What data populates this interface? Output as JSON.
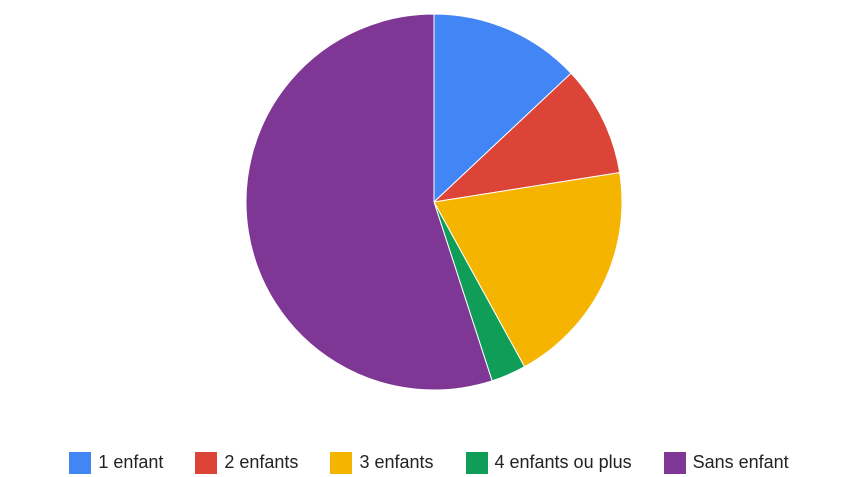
{
  "chart_data": {
    "type": "pie",
    "title": "",
    "slices": [
      {
        "label": "1 enfant",
        "value": 13,
        "color": "#4285f4"
      },
      {
        "label": "2 enfants",
        "value": 9.5,
        "color": "#db4437"
      },
      {
        "label": "3 enfants",
        "value": 19.5,
        "color": "#f4b400"
      },
      {
        "label": "4 enfants ou plus",
        "value": 3,
        "color": "#0f9d58"
      },
      {
        "label": "Sans enfant",
        "value": 55,
        "color": "#7e3794"
      }
    ],
    "legend_position": "bottom"
  }
}
